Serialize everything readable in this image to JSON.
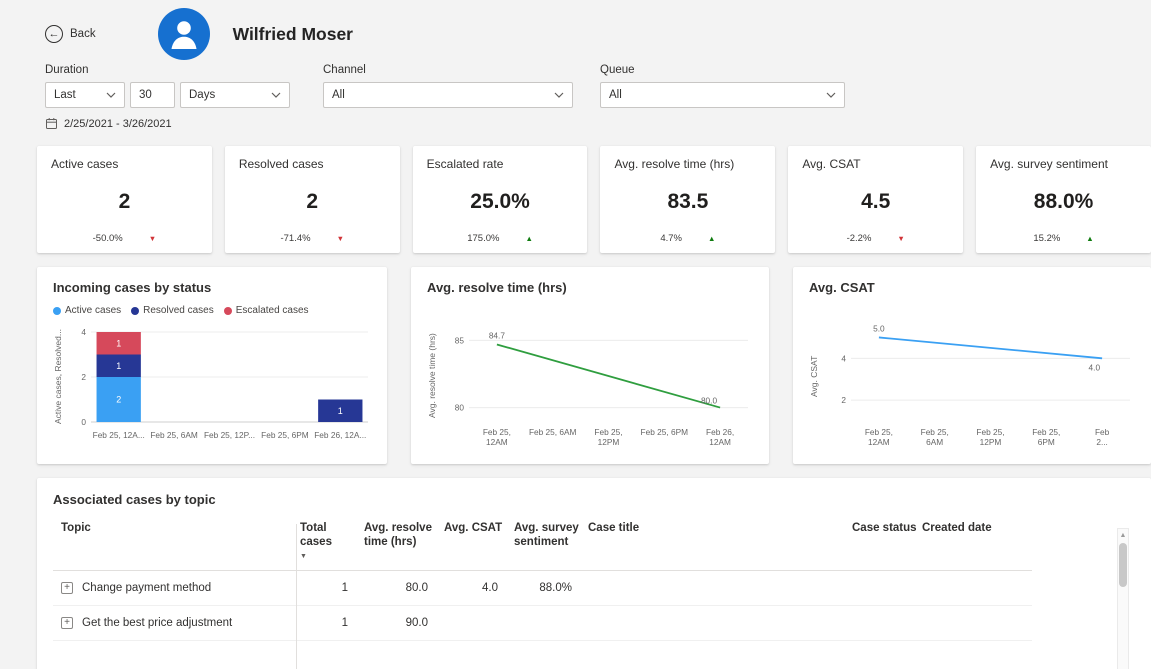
{
  "header": {
    "back_label": "Back",
    "name": "Wilfried Moser"
  },
  "icons": {
    "back_arrow": "←",
    "expand": "+",
    "sort_descending": "▼",
    "trend_up": "▲",
    "trend_down": "▼",
    "scrollbar_up": "▲"
  },
  "colors": {
    "avatar": "#1670d0",
    "up": "#107c10",
    "down": "#d13438"
  },
  "filters": {
    "duration_label": "Duration",
    "duration_last": "Last",
    "duration_value": "30",
    "duration_unit": "Days",
    "channel_label": "Channel",
    "channel_value": "All",
    "queue_label": "Queue",
    "queue_value": "All",
    "date_range": "2/25/2021 - 3/26/2021"
  },
  "kpis": [
    {
      "title": "Active cases",
      "value": "2",
      "delta": "-50.0%",
      "direction": "down"
    },
    {
      "title": "Resolved cases",
      "value": "2",
      "delta": "-71.4%",
      "direction": "down"
    },
    {
      "title": "Escalated rate",
      "value": "25.0%",
      "delta": "175.0%",
      "direction": "up"
    },
    {
      "title": "Avg. resolve time (hrs)",
      "value": "83.5",
      "delta": "4.7%",
      "direction": "up"
    },
    {
      "title": "Avg. CSAT",
      "value": "4.5",
      "delta": "-2.2%",
      "direction": "down"
    },
    {
      "title": "Avg. survey sentiment",
      "value": "88.0%",
      "delta": "15.2%",
      "direction": "up"
    }
  ],
  "chart_data": [
    {
      "type": "bar",
      "stacked": true,
      "title": "Incoming cases by status",
      "ylabel": "Active cases, Resolved...",
      "xlabel": "",
      "categories": [
        "Feb 25, 12A...",
        "Feb 25, 6AM",
        "Feb 25, 12P...",
        "Feb 25, 6PM",
        "Feb 26, 12A..."
      ],
      "series": [
        {
          "name": "Active cases",
          "color": "#3aa0f3",
          "values": [
            2,
            0,
            0,
            0,
            0
          ]
        },
        {
          "name": "Resolved cases",
          "color": "#263795",
          "values": [
            1,
            0,
            0,
            0,
            1
          ]
        },
        {
          "name": "Escalated cases",
          "color": "#d6495b",
          "values": [
            1,
            0,
            0,
            0,
            0
          ]
        }
      ],
      "yticks": [
        0,
        2,
        4
      ],
      "ylim": [
        0,
        4
      ],
      "legend_position": "top",
      "grid": true
    },
    {
      "type": "line",
      "title": "Avg. resolve time (hrs)",
      "ylabel": "Avg. resolve time (hrs)",
      "xlabel": "",
      "color": "#2f9e3f",
      "categories": [
        [
          "Feb 25,",
          "12AM"
        ],
        [
          "Feb 25, 6AM"
        ],
        [
          "Feb 25,",
          "12PM"
        ],
        [
          "Feb 25, 6PM"
        ],
        [
          "Feb 26,",
          "12AM"
        ]
      ],
      "values": [
        84.7,
        null,
        null,
        null,
        80.0
      ],
      "point_labels": [
        {
          "index": 0,
          "text": "84.7",
          "position": "above"
        },
        {
          "index": 4,
          "text": "80.0",
          "position": "above-left"
        }
      ],
      "yticks": [
        80,
        85
      ],
      "ylim": [
        79,
        86
      ],
      "grid": true
    },
    {
      "type": "line",
      "title": "Avg. CSAT",
      "ylabel": "Avg. CSAT",
      "xlabel": "",
      "color": "#3aa0f3",
      "categories": [
        [
          "Feb 25,",
          "12AM"
        ],
        [
          "Feb 25,",
          "6AM"
        ],
        [
          "Feb 25,",
          "12PM"
        ],
        [
          "Feb 25,",
          "6PM"
        ],
        [
          "Feb",
          "2..."
        ]
      ],
      "values": [
        5.0,
        null,
        null,
        null,
        4.0
      ],
      "point_labels": [
        {
          "index": 0,
          "text": "5.0",
          "position": "above"
        },
        {
          "index": 4,
          "text": "4.0",
          "position": "below-left"
        }
      ],
      "yticks": [
        2,
        4
      ],
      "ylim": [
        1,
        5.5
      ],
      "grid": true
    }
  ],
  "table": {
    "title": "Associated cases by topic",
    "columns": [
      "Topic",
      "Total cases",
      "Avg. resolve time (hrs)",
      "Avg. CSAT",
      "Avg. survey sentiment",
      "Case title",
      "Case status",
      "Created date"
    ],
    "rows": [
      {
        "topic": "Change payment method",
        "total_cases": "1",
        "avg_resolve_time": "80.0",
        "avg_csat": "4.0",
        "avg_survey_sentiment": "88.0%",
        "case_title": "",
        "case_status": "",
        "created_date": ""
      },
      {
        "topic": "Get the best price adjustment",
        "total_cases": "1",
        "avg_resolve_time": "90.0",
        "avg_csat": "",
        "avg_survey_sentiment": "",
        "case_title": "",
        "case_status": "",
        "created_date": ""
      }
    ]
  }
}
